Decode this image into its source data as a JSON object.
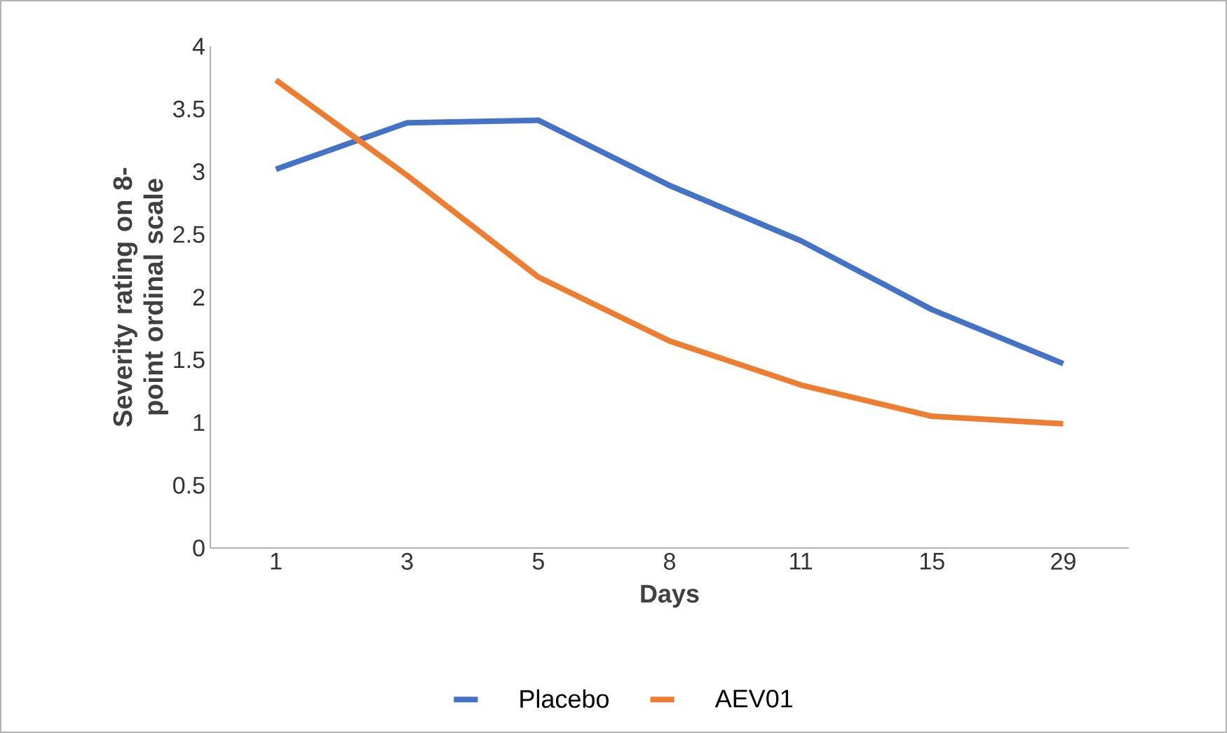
{
  "chart_data": {
    "type": "line",
    "xlabel": "Days",
    "ylabel": "Severity rating on 8-point ordinal scale",
    "categories": [
      "1",
      "3",
      "5",
      "8",
      "11",
      "15",
      "29"
    ],
    "series": [
      {
        "name": "Placebo",
        "color": "#4472c4",
        "values": [
          3.02,
          3.39,
          3.41,
          2.89,
          2.45,
          1.9,
          1.47
        ]
      },
      {
        "name": "AEV01",
        "color": "#ed7d31",
        "values": [
          3.73,
          2.97,
          2.16,
          1.65,
          1.3,
          1.05,
          0.99
        ]
      }
    ],
    "ylim": [
      0,
      4
    ],
    "yticks": [
      0,
      0.5,
      1,
      1.5,
      2,
      2.5,
      3,
      3.5,
      4
    ],
    "grid": false,
    "legend": "bottom",
    "line_style": "solid"
  }
}
